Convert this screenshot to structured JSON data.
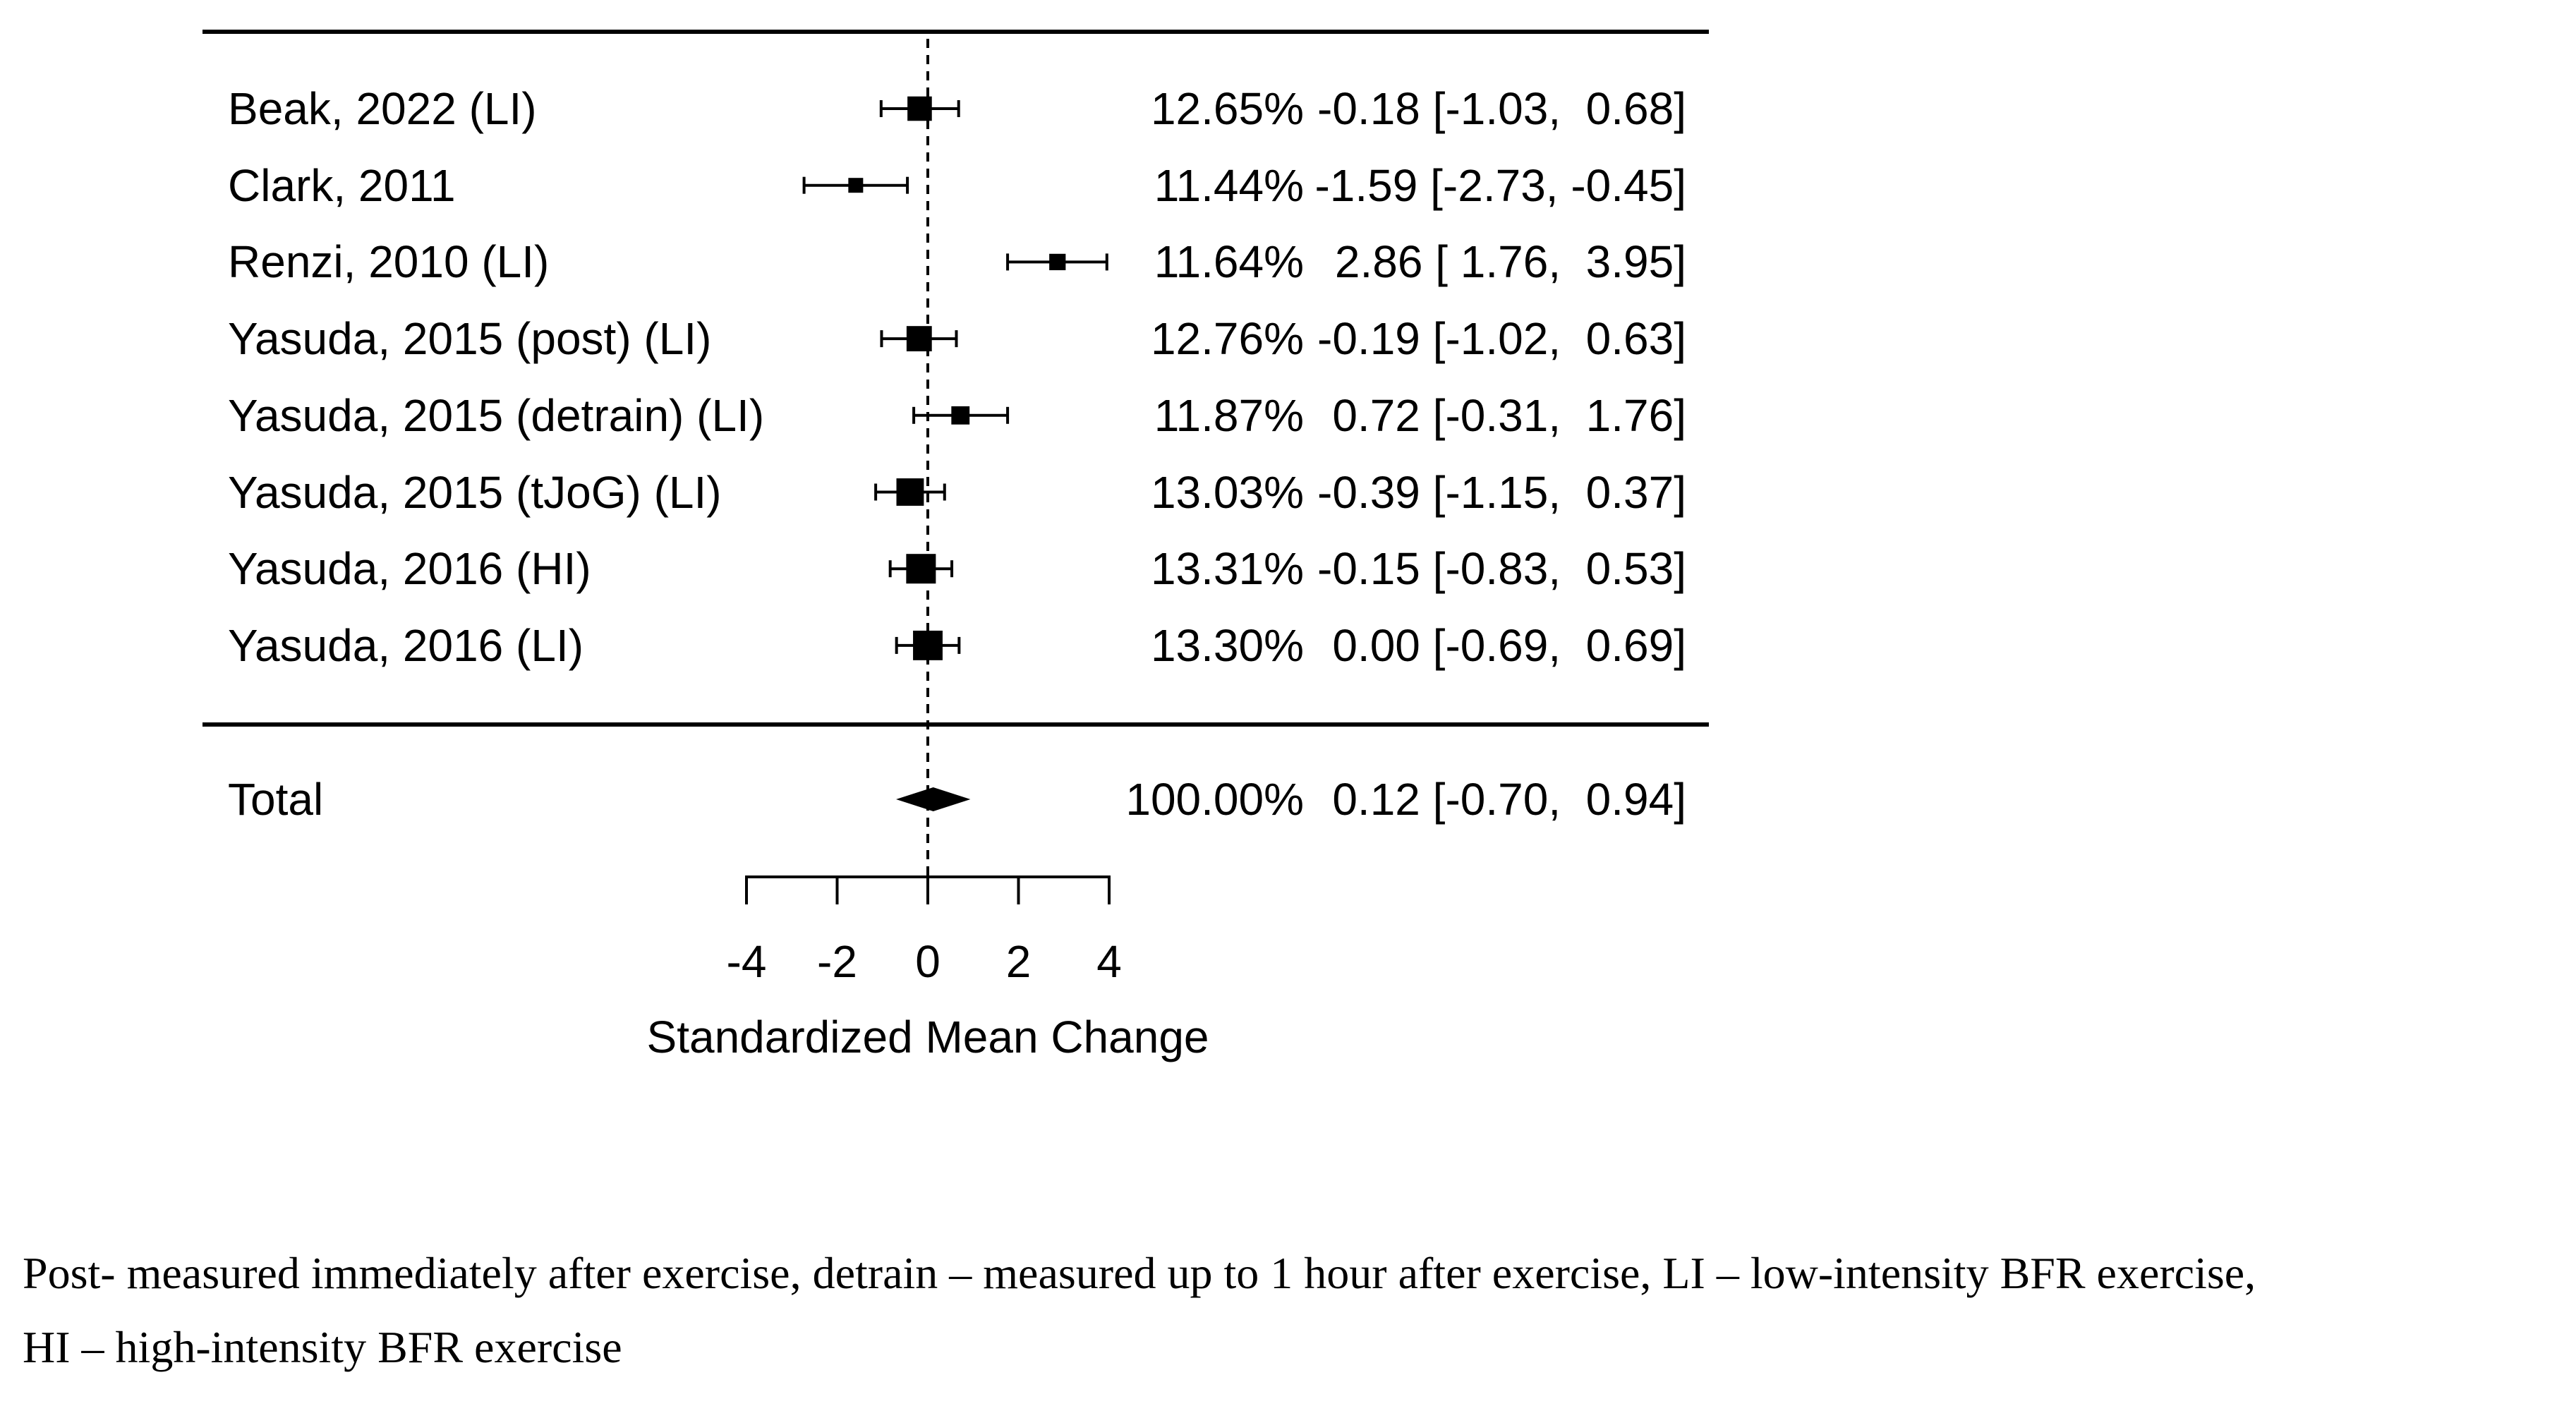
{
  "colors": {
    "ink": "#000000",
    "background": "#ffffff"
  },
  "chart_data": {
    "type": "forest",
    "xlabel": "Standardized Mean Change",
    "xlim": [
      -4,
      4
    ],
    "x_ticks": [
      -4,
      -2,
      0,
      2,
      4
    ],
    "zero_line": 0,
    "columns": {
      "weight_header": "",
      "ci_header": ""
    },
    "studies": [
      {
        "label": "Beak, 2022 (LI)",
        "weight": "12.65%",
        "weight_pct": 12.65,
        "est": -0.18,
        "lo": -1.03,
        "hi": 0.68,
        "ci_text": "-0.18 [-1.03,  0.68]"
      },
      {
        "label": "Clark, 2011",
        "weight": "11.44%",
        "weight_pct": 11.44,
        "est": -1.59,
        "lo": -2.73,
        "hi": -0.45,
        "ci_text": "-1.59 [-2.73, -0.45]"
      },
      {
        "label": "Renzi, 2010 (LI)",
        "weight": "11.64%",
        "weight_pct": 11.64,
        "est": 2.86,
        "lo": 1.76,
        "hi": 3.95,
        "ci_text": " 2.86 [ 1.76,  3.95]"
      },
      {
        "label": "Yasuda, 2015 (post) (LI)",
        "weight": "12.76%",
        "weight_pct": 12.76,
        "est": -0.19,
        "lo": -1.02,
        "hi": 0.63,
        "ci_text": "-0.19 [-1.02,  0.63]"
      },
      {
        "label": "Yasuda, 2015 (detrain) (LI)",
        "weight": "11.87%",
        "weight_pct": 11.87,
        "est": 0.72,
        "lo": -0.31,
        "hi": 1.76,
        "ci_text": " 0.72 [-0.31,  1.76]"
      },
      {
        "label": "Yasuda, 2015 (tJoG) (LI)",
        "weight": "13.03%",
        "weight_pct": 13.03,
        "est": -0.39,
        "lo": -1.15,
        "hi": 0.37,
        "ci_text": "-0.39 [-1.15,  0.37]"
      },
      {
        "label": "Yasuda, 2016 (HI)",
        "weight": "13.31%",
        "weight_pct": 13.31,
        "est": -0.15,
        "lo": -0.83,
        "hi": 0.53,
        "ci_text": "-0.15 [-0.83,  0.53]"
      },
      {
        "label": "Yasuda, 2016 (LI)",
        "weight": "13.30%",
        "weight_pct": 13.3,
        "est": 0.0,
        "lo": -0.69,
        "hi": 0.69,
        "ci_text": " 0.00 [-0.69,  0.69]"
      }
    ],
    "total": {
      "label": "Total",
      "weight": "100.00%",
      "weight_pct": 100.0,
      "est": 0.12,
      "lo": -0.7,
      "hi": 0.94,
      "ci_text": " 0.12 [-0.70,  0.94]"
    }
  },
  "footnote": {
    "line1": "Post- measured immediately after exercise, detrain – measured up to 1 hour after exercise, LI – low-intensity BFR exercise,",
    "line2": "HI – high-intensity BFR exercise"
  }
}
